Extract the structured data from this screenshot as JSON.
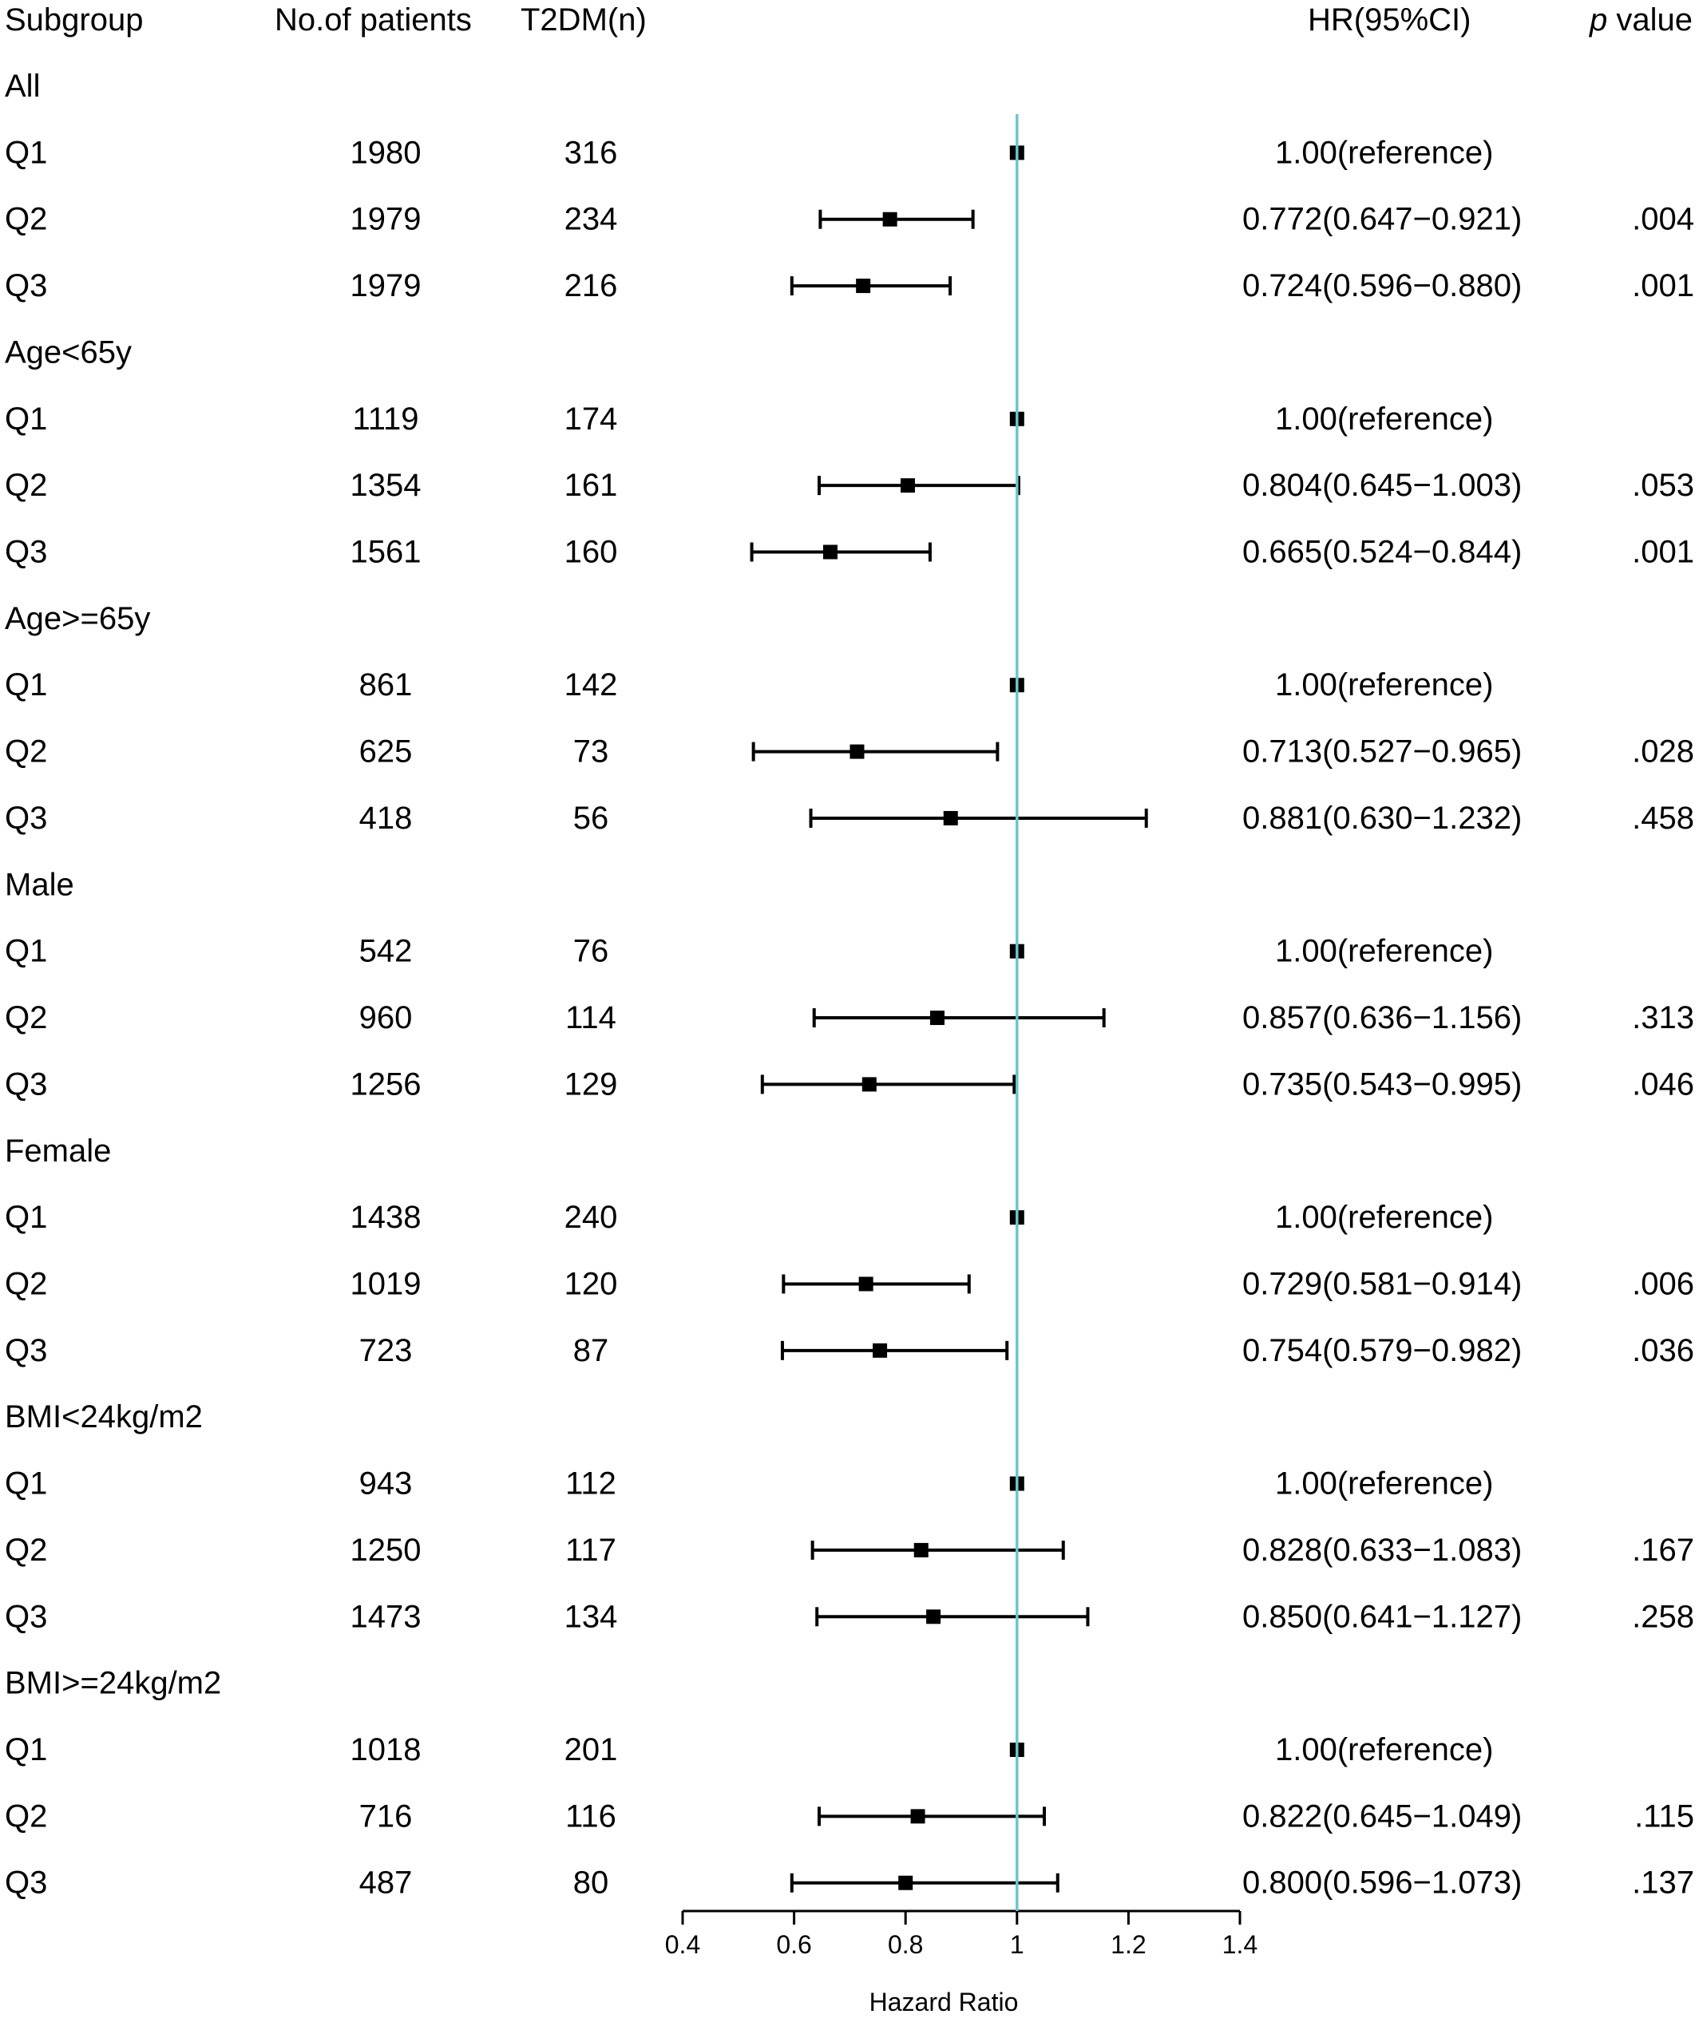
{
  "chart_data": {
    "type": "forest",
    "columns": {
      "subgroup": "Subgroup",
      "patients": "No.of patients",
      "t2dm": "T2DM(n)",
      "hr": "HR(95%CI)",
      "p_italic": "p",
      "p_rest": " value"
    },
    "xlabel": "Hazard Ratio",
    "xlim": [
      0.4,
      1.4
    ],
    "ticks": [
      "0.4",
      "0.6",
      "0.8",
      "1",
      "1.2",
      "1.4"
    ],
    "reference_line": 1,
    "reference_color": "#6cc5cc",
    "marker_color": "#000000",
    "rows": [
      {
        "kind": "group",
        "label": "All"
      },
      {
        "kind": "item",
        "label": "Q1",
        "n": "1980",
        "events": "316",
        "hr": 1.0,
        "lo": null,
        "hi": null,
        "hr_text": "1.00(reference)",
        "p": ""
      },
      {
        "kind": "item",
        "label": "Q2",
        "n": "1979",
        "events": "234",
        "hr": 0.772,
        "lo": 0.647,
        "hi": 0.921,
        "hr_text": "0.772(0.647−0.921)",
        "p": ".004"
      },
      {
        "kind": "item",
        "label": "Q3",
        "n": "1979",
        "events": "216",
        "hr": 0.724,
        "lo": 0.596,
        "hi": 0.88,
        "hr_text": "0.724(0.596−0.880)",
        "p": ".001"
      },
      {
        "kind": "group",
        "label": "Age<65y"
      },
      {
        "kind": "item",
        "label": "Q1",
        "n": "1119",
        "events": "174",
        "hr": 1.0,
        "lo": null,
        "hi": null,
        "hr_text": "1.00(reference)",
        "p": ""
      },
      {
        "kind": "item",
        "label": "Q2",
        "n": "1354",
        "events": "161",
        "hr": 0.804,
        "lo": 0.645,
        "hi": 1.003,
        "hr_text": "0.804(0.645−1.003)",
        "p": ".053"
      },
      {
        "kind": "item",
        "label": "Q3",
        "n": "1561",
        "events": "160",
        "hr": 0.665,
        "lo": 0.524,
        "hi": 0.844,
        "hr_text": "0.665(0.524−0.844)",
        "p": ".001"
      },
      {
        "kind": "group",
        "label": "Age>=65y"
      },
      {
        "kind": "item",
        "label": "Q1",
        "n": "861",
        "events": "142",
        "hr": 1.0,
        "lo": null,
        "hi": null,
        "hr_text": "1.00(reference)",
        "p": ""
      },
      {
        "kind": "item",
        "label": "Q2",
        "n": "625",
        "events": "73",
        "hr": 0.713,
        "lo": 0.527,
        "hi": 0.965,
        "hr_text": "0.713(0.527−0.965)",
        "p": ".028"
      },
      {
        "kind": "item",
        "label": "Q3",
        "n": "418",
        "events": "56",
        "hr": 0.881,
        "lo": 0.63,
        "hi": 1.232,
        "hr_text": "0.881(0.630−1.232)",
        "p": ".458"
      },
      {
        "kind": "group",
        "label": "Male"
      },
      {
        "kind": "item",
        "label": "Q1",
        "n": "542",
        "events": "76",
        "hr": 1.0,
        "lo": null,
        "hi": null,
        "hr_text": "1.00(reference)",
        "p": ""
      },
      {
        "kind": "item",
        "label": "Q2",
        "n": "960",
        "events": "114",
        "hr": 0.857,
        "lo": 0.636,
        "hi": 1.156,
        "hr_text": "0.857(0.636−1.156)",
        "p": ".313"
      },
      {
        "kind": "item",
        "label": "Q3",
        "n": "1256",
        "events": "129",
        "hr": 0.735,
        "lo": 0.543,
        "hi": 0.995,
        "hr_text": "0.735(0.543−0.995)",
        "p": ".046"
      },
      {
        "kind": "group",
        "label": "Female"
      },
      {
        "kind": "item",
        "label": "Q1",
        "n": "1438",
        "events": "240",
        "hr": 1.0,
        "lo": null,
        "hi": null,
        "hr_text": "1.00(reference)",
        "p": ""
      },
      {
        "kind": "item",
        "label": "Q2",
        "n": "1019",
        "events": "120",
        "hr": 0.729,
        "lo": 0.581,
        "hi": 0.914,
        "hr_text": "0.729(0.581−0.914)",
        "p": ".006"
      },
      {
        "kind": "item",
        "label": "Q3",
        "n": "723",
        "events": "87",
        "hr": 0.754,
        "lo": 0.579,
        "hi": 0.982,
        "hr_text": "0.754(0.579−0.982)",
        "p": ".036"
      },
      {
        "kind": "group",
        "label": "BMI<24kg/m2"
      },
      {
        "kind": "item",
        "label": "Q1",
        "n": "943",
        "events": "112",
        "hr": 1.0,
        "lo": null,
        "hi": null,
        "hr_text": "1.00(reference)",
        "p": ""
      },
      {
        "kind": "item",
        "label": "Q2",
        "n": "1250",
        "events": "117",
        "hr": 0.828,
        "lo": 0.633,
        "hi": 1.083,
        "hr_text": "0.828(0.633−1.083)",
        "p": ".167"
      },
      {
        "kind": "item",
        "label": "Q3",
        "n": "1473",
        "events": "134",
        "hr": 0.85,
        "lo": 0.641,
        "hi": 1.127,
        "hr_text": "0.850(0.641−1.127)",
        "p": ".258"
      },
      {
        "kind": "group",
        "label": "BMI>=24kg/m2"
      },
      {
        "kind": "item",
        "label": "Q1",
        "n": "1018",
        "events": "201",
        "hr": 1.0,
        "lo": null,
        "hi": null,
        "hr_text": "1.00(reference)",
        "p": ""
      },
      {
        "kind": "item",
        "label": "Q2",
        "n": "716",
        "events": "116",
        "hr": 0.822,
        "lo": 0.645,
        "hi": 1.049,
        "hr_text": "0.822(0.645−1.049)",
        "p": ".115"
      },
      {
        "kind": "item",
        "label": "Q3",
        "n": "487",
        "events": "80",
        "hr": 0.8,
        "lo": 0.596,
        "hi": 1.073,
        "hr_text": "0.800(0.596−1.073)",
        "p": ".137"
      }
    ]
  }
}
